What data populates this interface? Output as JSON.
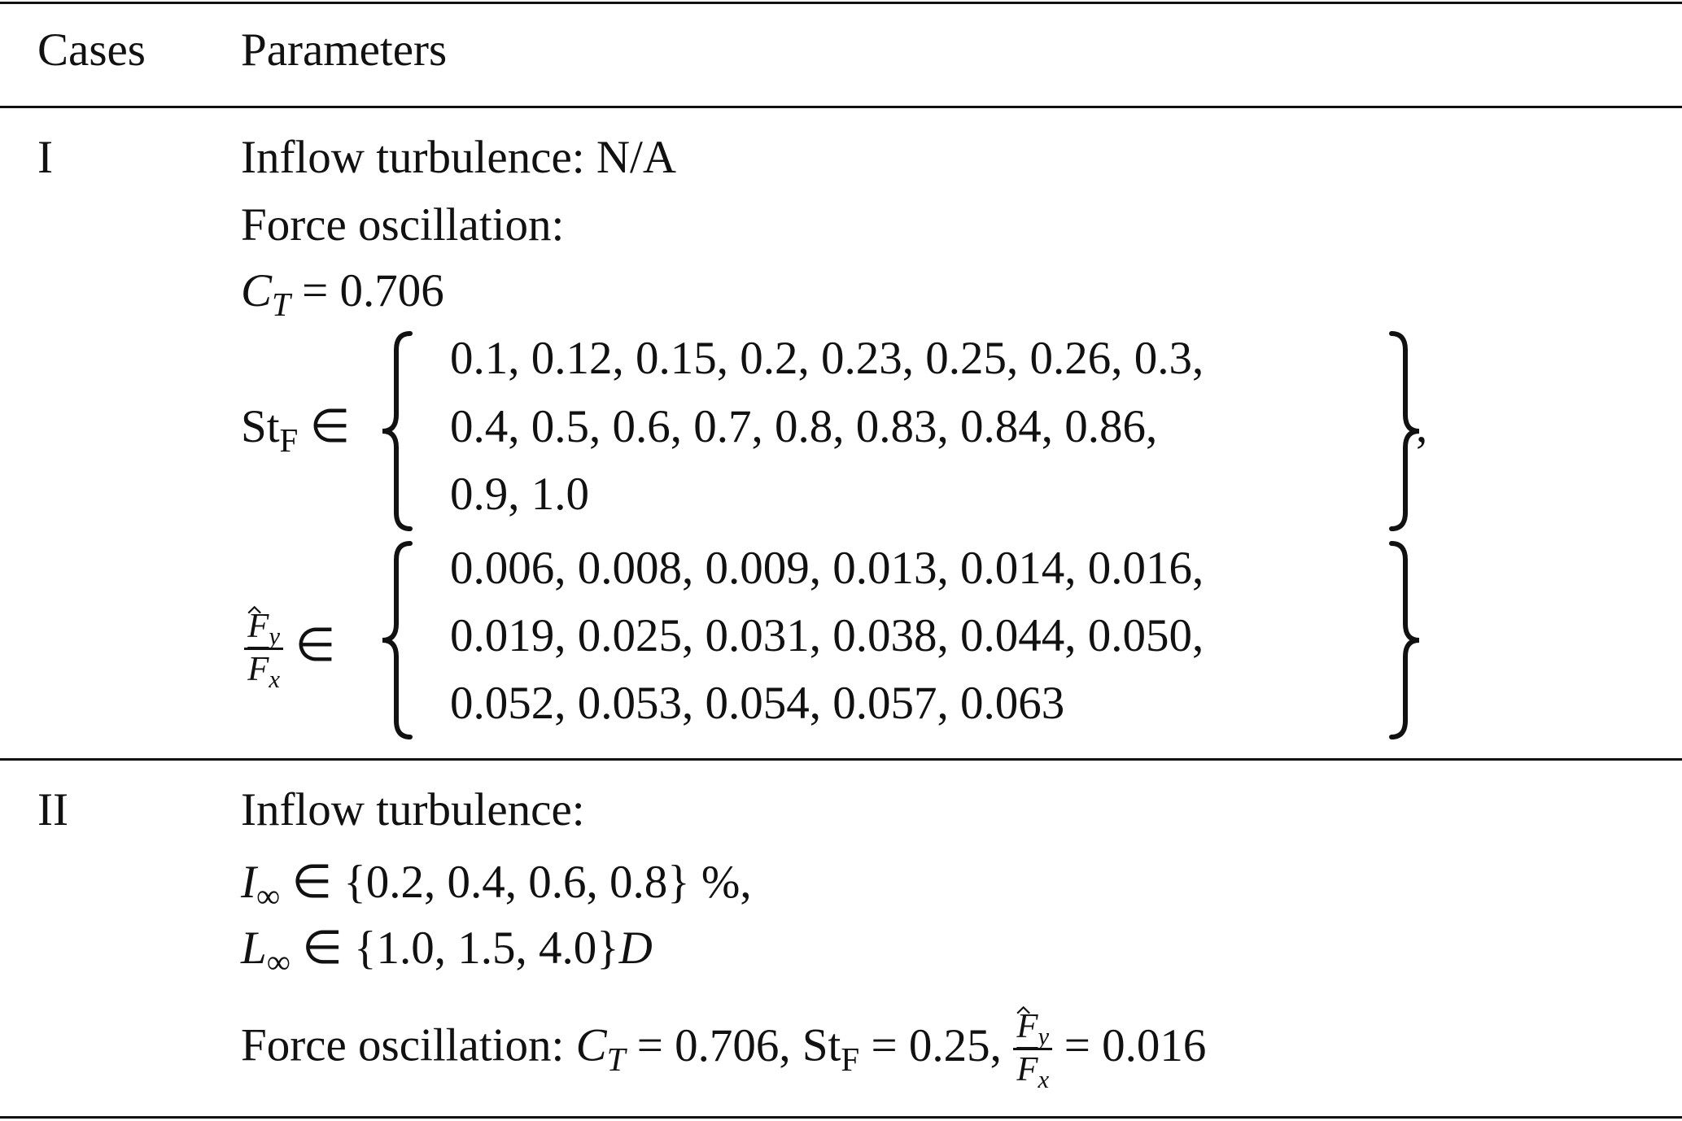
{
  "table": {
    "header": {
      "case": "Cases",
      "parameters": "Parameters"
    },
    "rows": [
      {
        "case": "I",
        "inflow": "Inflow turbulence: N/A",
        "force": "Force oscillation:",
        "ct": {
          "symbol": "C",
          "sub": "T",
          "rest": "= 0.706"
        },
        "st_set": {
          "symbol": "St",
          "sub": "F",
          "relation": "∈",
          "items": [
            "0.1, 0.12, 0.15, 0.2, 0.23, 0.25, 0.26, 0.3,",
            "0.4, 0.5, 0.6, 0.7, 0.8, 0.83, 0.84, 0.86,",
            "0.9, 1.0"
          ],
          "trail": ","
        },
        "ratio_set": {
          "num": "F",
          "num_sub": "y",
          "den": "F",
          "den_sub": "x",
          "relation": "∈",
          "items": [
            "0.006, 0.008, 0.009, 0.013, 0.014, 0.016,",
            "0.019, 0.025, 0.031, 0.038, 0.044, 0.050,",
            "0.052, 0.053, 0.054, 0.057, 0.063"
          ]
        }
      },
      {
        "case": "II",
        "inflow": "Inflow turbulence:",
        "intensity": {
          "symbol": "I",
          "sub": "∞",
          "rest": "∈ {0.2, 0.4, 0.6, 0.8} %,"
        },
        "length": {
          "symbol": "L",
          "sub": "∞",
          "rest": "∈ {1.0, 1.5, 4.0}",
          "unit": "D"
        },
        "force": {
          "label": "Force oscillation:",
          "ct_symbol": "C",
          "ct_sub": "T",
          "ct_rest": "= 0.706,",
          "st_symbol": "St",
          "st_sub": "F",
          "st_rest": "= 0.25,",
          "num": "F",
          "num_sub": "y",
          "den": "F",
          "den_sub": "x",
          "ratio_rest": "= 0.016"
        }
      }
    ]
  }
}
